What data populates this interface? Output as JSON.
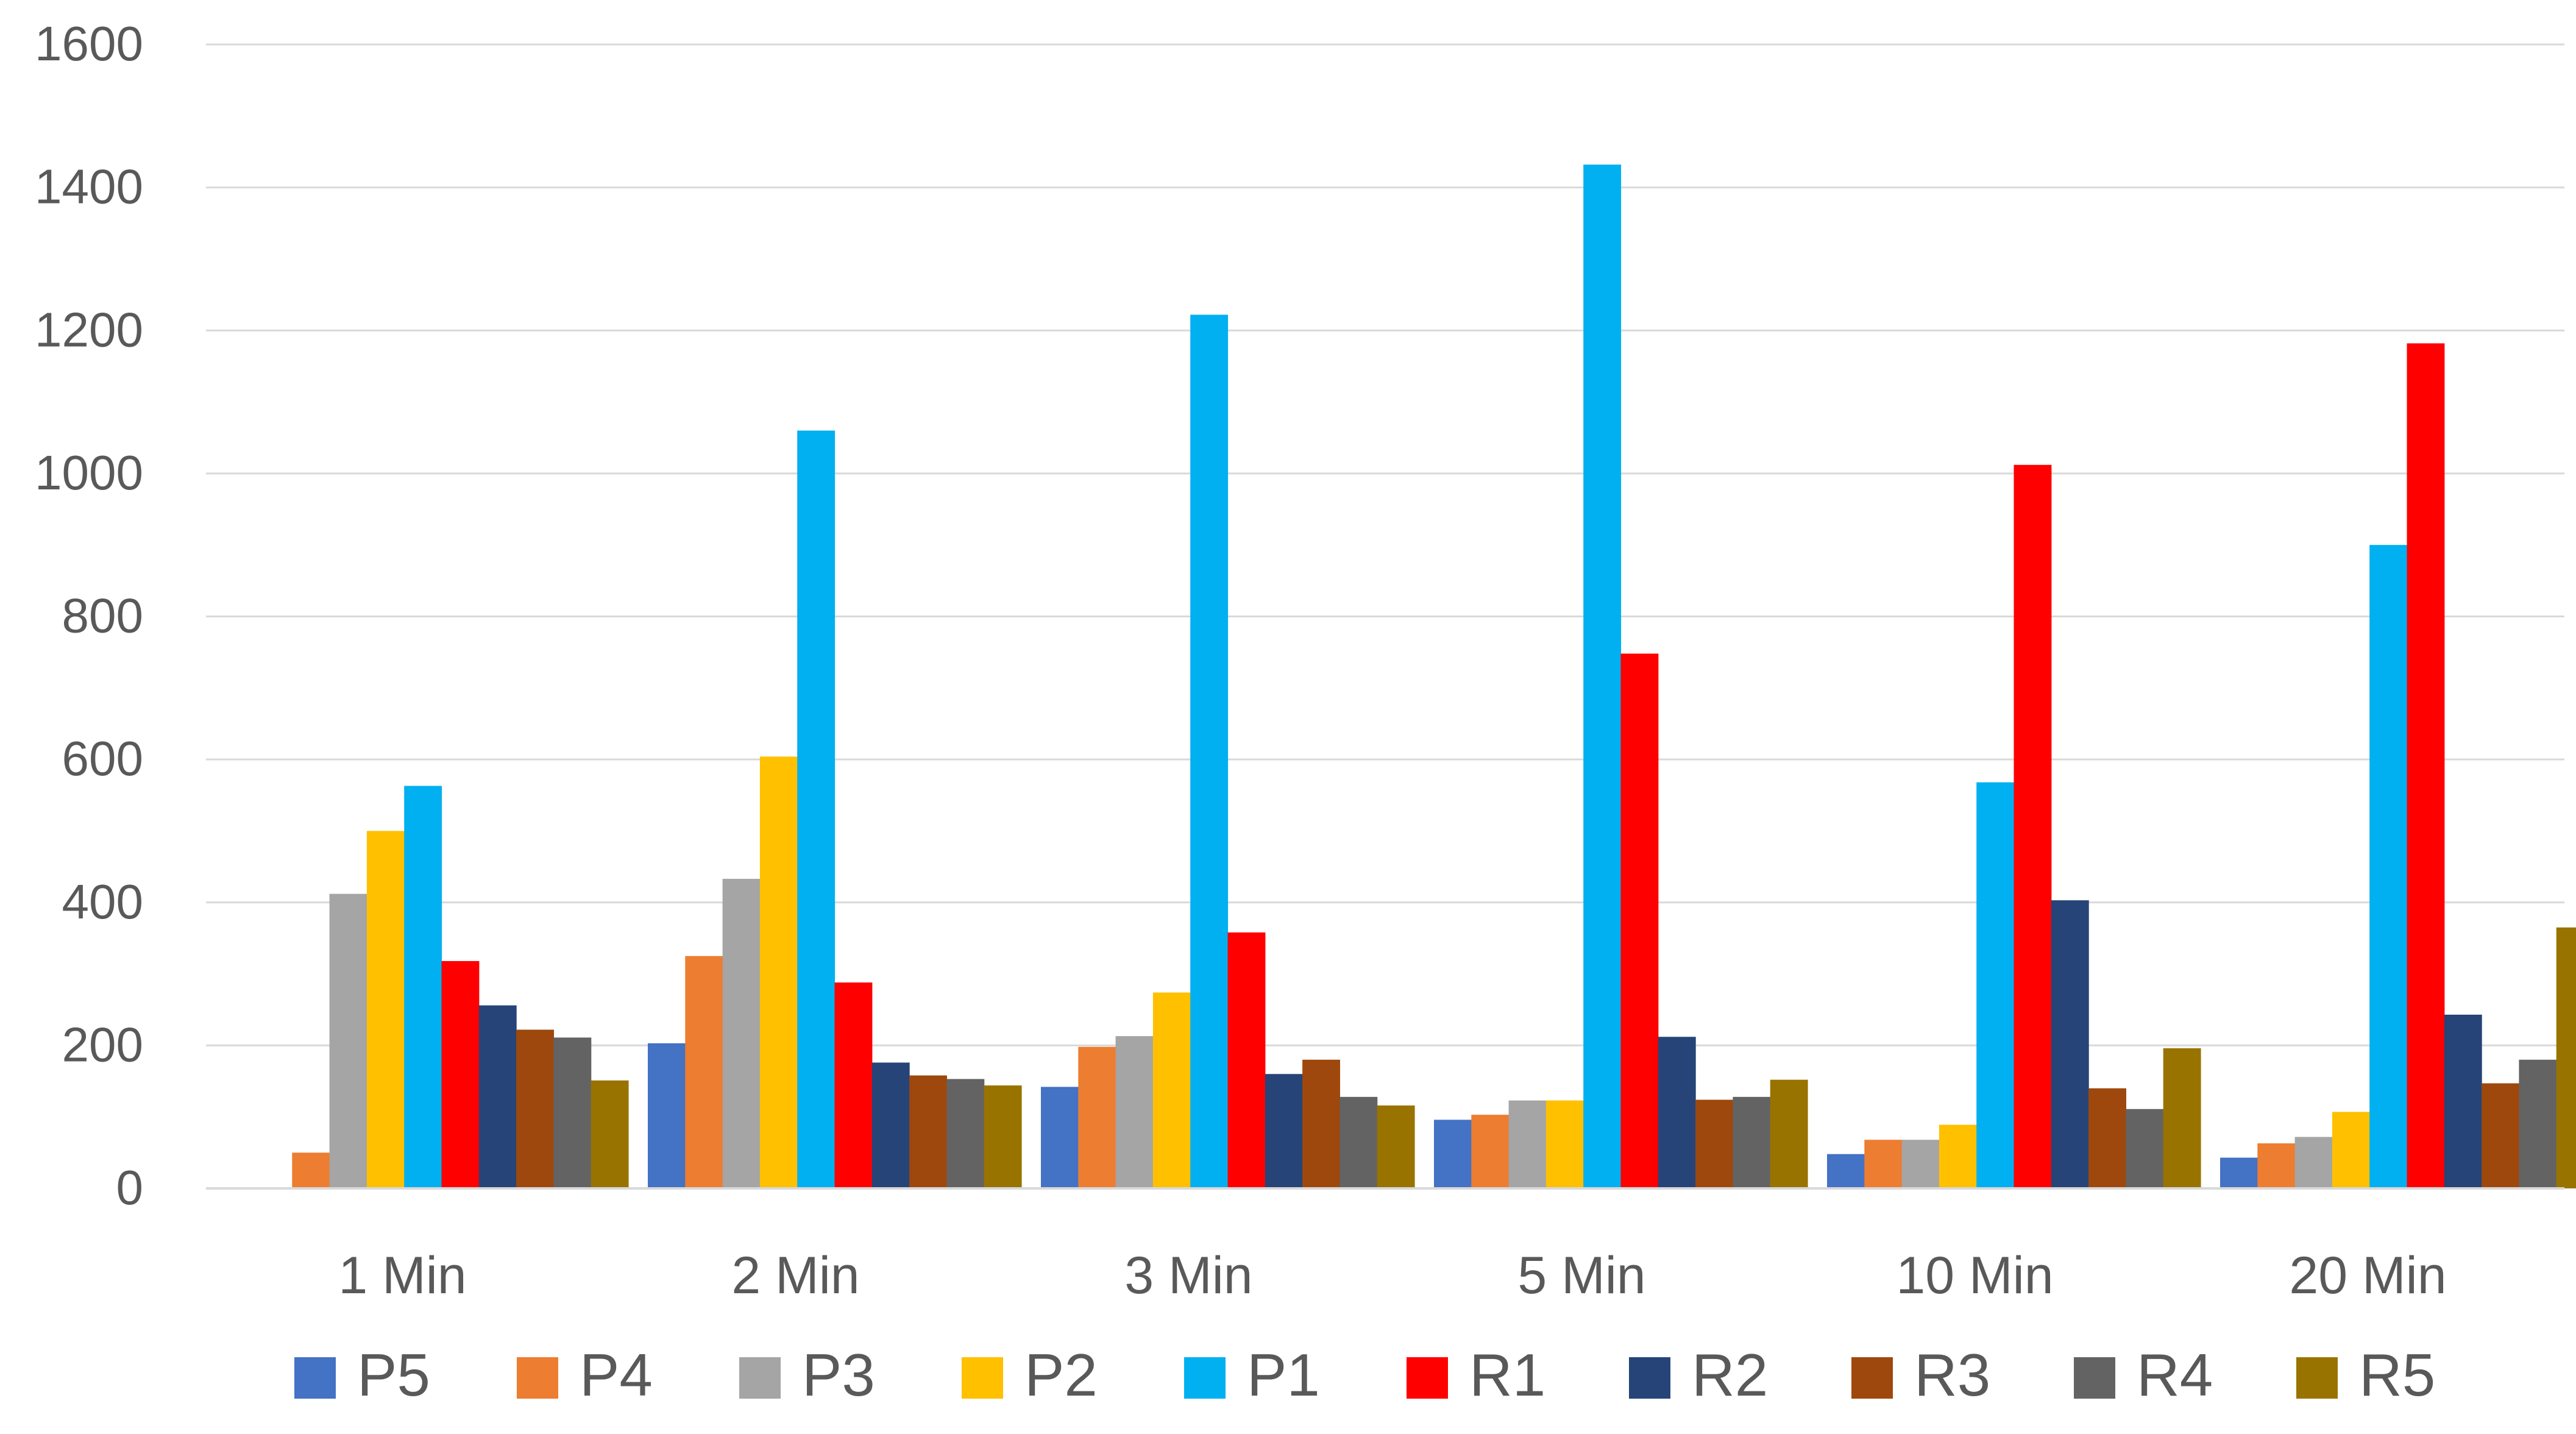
{
  "chart_data": {
    "type": "bar",
    "title": "",
    "xlabel": "",
    "ylabel": "",
    "ylim": [
      0,
      1600
    ],
    "yticks": [
      0,
      200,
      400,
      600,
      800,
      1000,
      1200,
      1400,
      1600
    ],
    "grid": true,
    "legend_position": "bottom",
    "categories": [
      "1 Min",
      "2 Min",
      "3 Min",
      "5 Min",
      "10 Min",
      "20 Min"
    ],
    "series": [
      {
        "name": "P5",
        "color": "#4472C4",
        "values": [
          0,
          203,
          142,
          96,
          48,
          43
        ]
      },
      {
        "name": "P4",
        "color": "#ED7D31",
        "values": [
          50,
          325,
          198,
          103,
          68,
          63
        ]
      },
      {
        "name": "P3",
        "color": "#A5A5A5",
        "values": [
          412,
          433,
          213,
          123,
          68,
          72
        ]
      },
      {
        "name": "P2",
        "color": "#FFC000",
        "values": [
          500,
          604,
          274,
          123,
          89,
          107
        ]
      },
      {
        "name": "P1",
        "color": "#00B0F0",
        "values": [
          563,
          1060,
          1222,
          1432,
          568,
          900
        ]
      },
      {
        "name": "R1",
        "color": "#FF0000",
        "values": [
          318,
          288,
          358,
          748,
          1012,
          1182
        ]
      },
      {
        "name": "R2",
        "color": "#264478",
        "values": [
          256,
          176,
          160,
          212,
          403,
          243
        ]
      },
      {
        "name": "R3",
        "color": "#9E480E",
        "values": [
          222,
          158,
          180,
          124,
          140,
          147
        ]
      },
      {
        "name": "R4",
        "color": "#636363",
        "values": [
          211,
          153,
          128,
          128,
          111,
          180
        ]
      },
      {
        "name": "R5",
        "color": "#997300",
        "values": [
          151,
          144,
          116,
          152,
          196,
          365
        ]
      }
    ]
  }
}
